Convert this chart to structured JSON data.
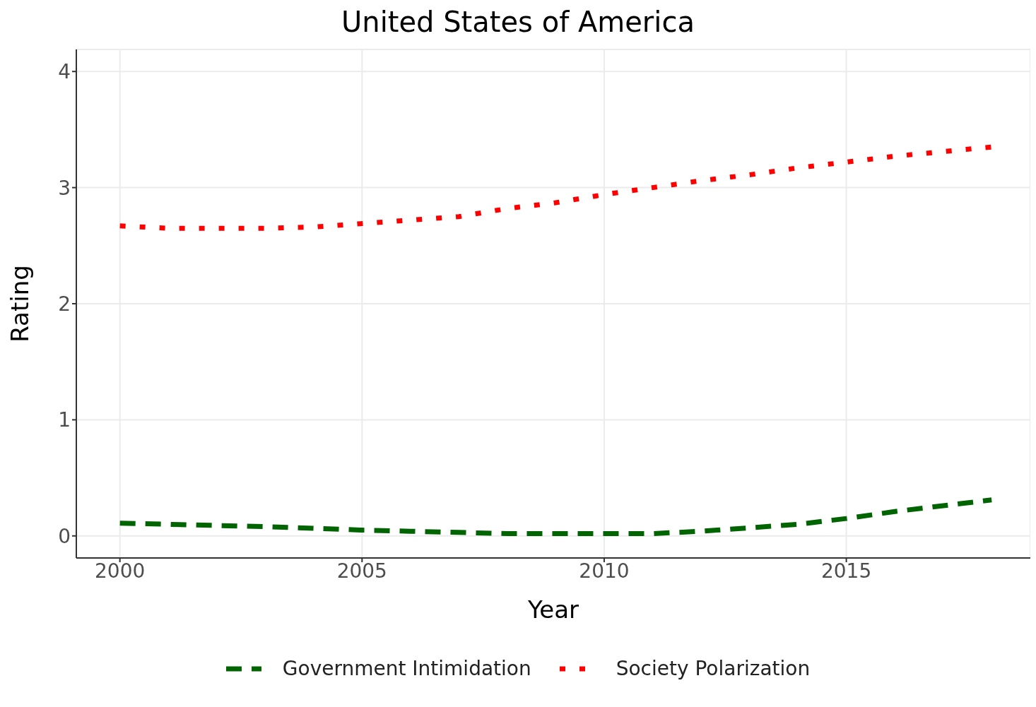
{
  "chart_data": {
    "type": "line",
    "title": "United States of America",
    "xlabel": "Year",
    "ylabel": "Rating",
    "x": [
      2000,
      2001,
      2002,
      2003,
      2004,
      2005,
      2006,
      2007,
      2008,
      2009,
      2010,
      2011,
      2012,
      2013,
      2014,
      2015,
      2016,
      2017,
      2018
    ],
    "series": [
      {
        "name": "Government Intimidation",
        "color": "#006400",
        "line_style": "dashed",
        "values": [
          0.11,
          0.1,
          0.09,
          0.08,
          0.065,
          0.05,
          0.04,
          0.03,
          0.02,
          0.02,
          0.02,
          0.02,
          0.04,
          0.07,
          0.1,
          0.15,
          0.21,
          0.26,
          0.31
        ]
      },
      {
        "name": "Society Polarization",
        "color": "#ff0000",
        "line_style": "dotted",
        "values": [
          2.67,
          2.65,
          2.65,
          2.65,
          2.66,
          2.69,
          2.72,
          2.75,
          2.82,
          2.87,
          2.94,
          3.0,
          3.06,
          3.11,
          3.17,
          3.22,
          3.27,
          3.31,
          3.35
        ]
      }
    ],
    "xlim": [
      1999.1,
      2018.8
    ],
    "xticks": [
      2000,
      2005,
      2010,
      2015
    ],
    "ylim": [
      -0.19,
      4.19
    ],
    "yticks": [
      0,
      1,
      2,
      3,
      4
    ],
    "grid": true,
    "legend": "bottom",
    "marker": "none"
  }
}
